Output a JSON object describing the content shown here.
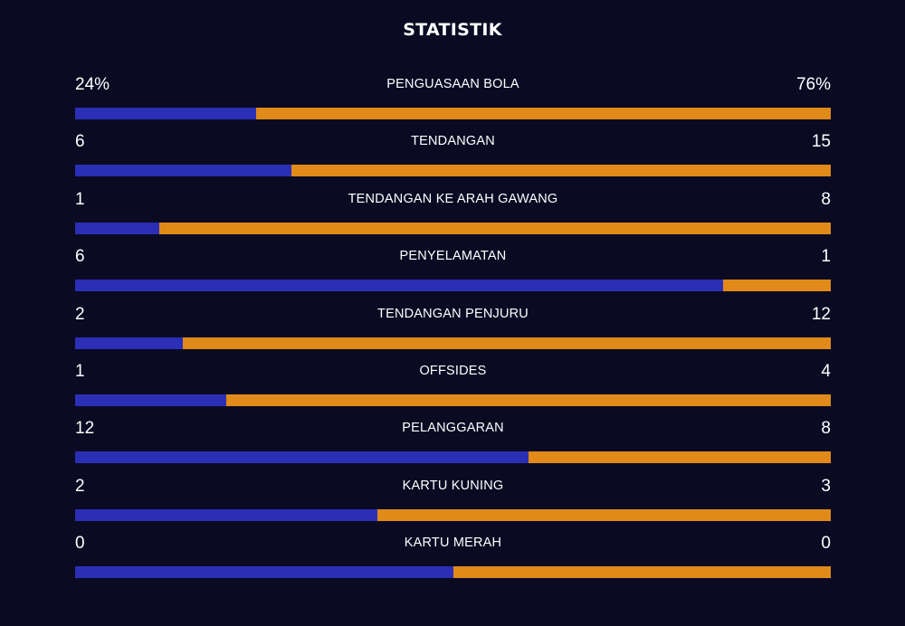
{
  "title": "STATISTIK",
  "colors": {
    "background": "#0a0a23",
    "home": "#2b2fb5",
    "away": "#e08a19"
  },
  "stats": [
    {
      "label": "PENGUASAAN BOLA",
      "home": "24%",
      "away": "76%",
      "home_share": 0.24
    },
    {
      "label": "TENDANGAN",
      "home": "6",
      "away": "15",
      "home_share": 0.2857
    },
    {
      "label": "TENDANGAN KE ARAH GAWANG",
      "home": "1",
      "away": "8",
      "home_share": 0.1111
    },
    {
      "label": "PENYELAMATAN",
      "home": "6",
      "away": "1",
      "home_share": 0.8571
    },
    {
      "label": "TENDANGAN PENJURU",
      "home": "2",
      "away": "12",
      "home_share": 0.1429
    },
    {
      "label": "OFFSIDES",
      "home": "1",
      "away": "4",
      "home_share": 0.2
    },
    {
      "label": "PELANGGARAN",
      "home": "12",
      "away": "8",
      "home_share": 0.6
    },
    {
      "label": "KARTU KUNING",
      "home": "2",
      "away": "3",
      "home_share": 0.4
    },
    {
      "label": "KARTU MERAH",
      "home": "0",
      "away": "0",
      "home_share": 0.5
    }
  ]
}
